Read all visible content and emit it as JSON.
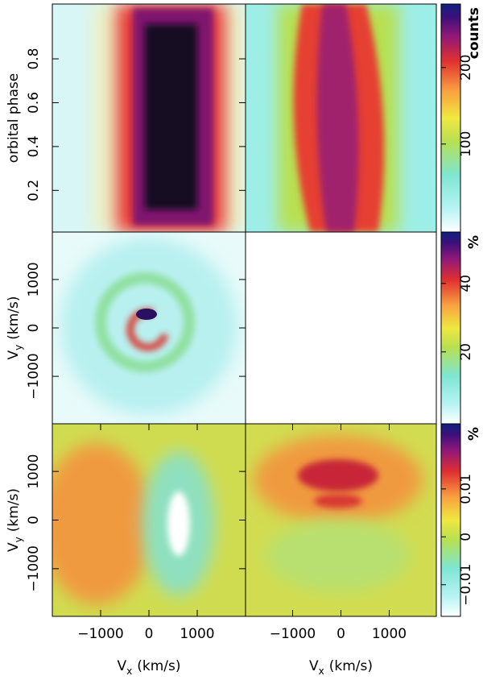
{
  "chart_data": [
    {
      "type": "image",
      "ylabel": "orbital phase",
      "ylim": [
        0.01,
        1.05
      ],
      "yticks": [
        0.2,
        0.4,
        0.6,
        0.8
      ]
    },
    {
      "type": "colorbar",
      "label": "counts",
      "ylim": [
        -15,
        283
      ],
      "yticks": [
        100,
        200
      ]
    },
    {
      "type": "image",
      "ylabel": {
        "main": "V",
        "sub": "y",
        "unit": "(km/s)"
      },
      "ylim": [
        -1980,
        1980
      ],
      "yticks": [
        {
          "value": -1000,
          "label": "−1000"
        },
        0,
        1000
      ]
    },
    {
      "type": "colorbar",
      "label": "%",
      "ylim": [
        -1,
        55
      ],
      "yticks": [
        20,
        40
      ]
    },
    {
      "type": "image",
      "ylabel": {
        "main": "V",
        "sub": "y",
        "unit": "(km/s)"
      },
      "ylim": [
        -1980,
        1980
      ],
      "yticks": [
        {
          "value": -1000,
          "label": "−1000"
        },
        0,
        1000
      ],
      "xlabel": {
        "main": "V",
        "sub": "x",
        "unit": "(km/s)"
      },
      "xlim": [
        -2000,
        2000
      ],
      "xticks": [
        {
          "value": -1000,
          "label": "−1000"
        },
        0,
        1000
      ]
    },
    {
      "type": "image",
      "xlabel": {
        "main": "V",
        "sub": "x",
        "unit": "(km/s)"
      },
      "xlim": [
        -1975,
        1975
      ],
      "xticks": [
        {
          "value": -1000,
          "label": "−1000"
        },
        0,
        1000
      ]
    },
    {
      "type": "colorbar",
      "label": "%",
      "ylim": [
        -0.0166,
        0.0236
      ],
      "yticks": [
        {
          "value": -0.01,
          "label": "−0.01"
        },
        0,
        0.01
      ]
    }
  ]
}
